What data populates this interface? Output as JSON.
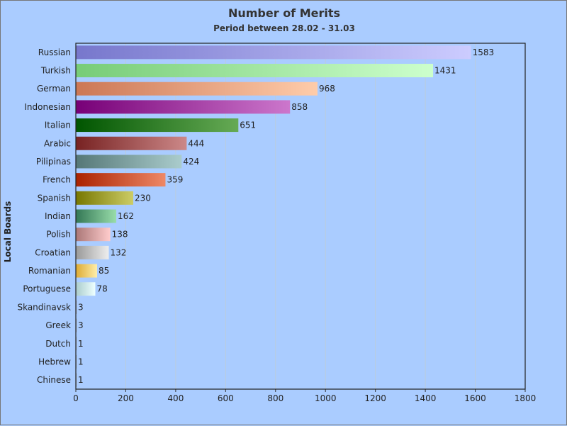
{
  "chart_data": {
    "type": "bar",
    "orientation": "horizontal",
    "title": "Number of Merits",
    "subtitle": "Period between 28.02 - 31.03",
    "xlabel": "",
    "ylabel": "Local Boards",
    "xlim": [
      0,
      1800
    ],
    "xticks": [
      0,
      200,
      400,
      600,
      800,
      1000,
      1200,
      1400,
      1600,
      1800
    ],
    "grid": "vertical",
    "legend": "none",
    "categories": [
      "Russian",
      "Turkish",
      "German",
      "Indonesian",
      "Italian",
      "Arabic",
      "Pilipinas",
      "French",
      "Spanish",
      "Indian",
      "Polish",
      "Croatian",
      "Romanian",
      "Portuguese",
      "Skandinavsk",
      "Greek",
      "Dutch",
      "Hebrew",
      "Chinese"
    ],
    "values": [
      1583,
      1431,
      968,
      858,
      651,
      444,
      424,
      359,
      230,
      162,
      138,
      132,
      85,
      78,
      3,
      3,
      1,
      1,
      1
    ],
    "colors": [
      [
        "#7777cc",
        "#ccccff"
      ],
      [
        "#77cc77",
        "#ccffcc"
      ],
      [
        "#cc7755",
        "#ffccaa"
      ],
      [
        "#770077",
        "#cc77cc"
      ],
      [
        "#005500",
        "#66aa55"
      ],
      [
        "#772222",
        "#cc8888"
      ],
      [
        "#557777",
        "#aacccc"
      ],
      [
        "#aa2200",
        "#ee8866"
      ],
      [
        "#777700",
        "#cccc66"
      ],
      [
        "#337755",
        "#99ddaa"
      ],
      [
        "#aa7777",
        "#ffcccc"
      ],
      [
        "#999999",
        "#eeeeee"
      ],
      [
        "#ddaa33",
        "#ffeeaa"
      ],
      [
        "#aacccc",
        "#eeffff"
      ],
      [
        "#666666",
        "#aaaaaa"
      ],
      [
        "#666666",
        "#aaaaaa"
      ],
      [
        "#666666",
        "#aaaaaa"
      ],
      [
        "#666666",
        "#aaaaaa"
      ],
      [
        "#666666",
        "#aaaaaa"
      ]
    ],
    "background": "#aaccff",
    "plot_background": "#aaccff"
  }
}
